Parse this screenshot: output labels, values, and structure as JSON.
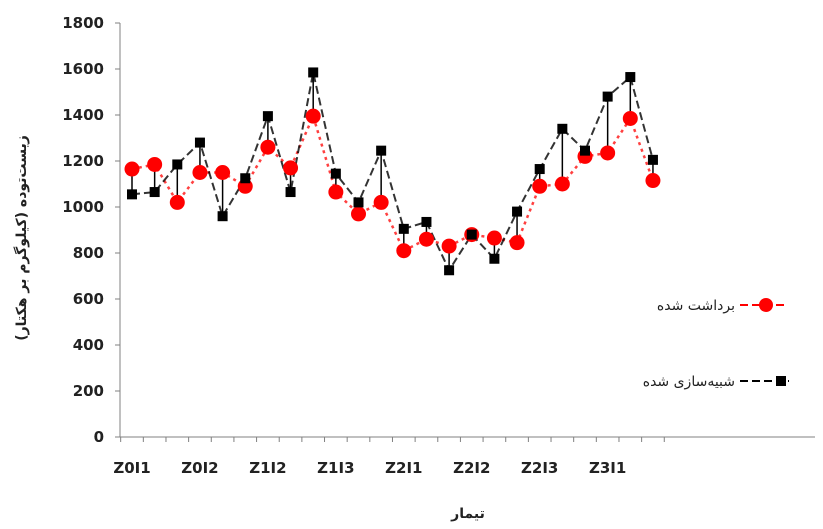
{
  "chart_data": {
    "type": "line",
    "ylabel": "زیست‌توده (کیلوگرم بر هکتار)",
    "xlabel": "تیمار",
    "ylim": [
      0,
      1800
    ],
    "yticks": [
      0,
      200,
      400,
      600,
      800,
      1000,
      1200,
      1400,
      1600,
      1800
    ],
    "ytick_labels": [
      "0",
      "200",
      "400",
      "600",
      "800",
      "1000",
      "1200",
      "1400",
      "1600",
      "1800"
    ],
    "xtick_labels": [
      "Z0I1",
      "Z0I2",
      "Z1I2",
      "Z1I3",
      "Z2I1",
      "Z2I2",
      "Z2I3",
      "Z3I1"
    ],
    "xtick_positions": [
      1,
      4,
      7,
      10,
      13,
      16,
      19,
      22
    ],
    "x": [
      1,
      2,
      3,
      4,
      5,
      6,
      7,
      8,
      9,
      10,
      11,
      12,
      13,
      14,
      15,
      16,
      17,
      18,
      19,
      20,
      21,
      22,
      23,
      24
    ],
    "grid": false,
    "legend_position": "right",
    "series": [
      {
        "name": "برداشت شده",
        "color": "#ff0000",
        "marker": "circle",
        "line_style": "dashed",
        "values": [
          1165,
          1185,
          1020,
          1150,
          1150,
          1090,
          1260,
          1170,
          1395,
          1065,
          970,
          1020,
          810,
          860,
          830,
          880,
          865,
          845,
          1090,
          1100,
          1220,
          1235,
          1385,
          1115
        ]
      },
      {
        "name": "شبیه‌سازی شده",
        "color": "#000000",
        "marker": "square",
        "line_style": "dashed",
        "values": [
          1055,
          1065,
          1185,
          1280,
          960,
          1125,
          1395,
          1065,
          1585,
          1145,
          1020,
          1245,
          905,
          935,
          725,
          880,
          775,
          980,
          1165,
          1340,
          1245,
          1480,
          1565,
          1205
        ]
      }
    ]
  }
}
